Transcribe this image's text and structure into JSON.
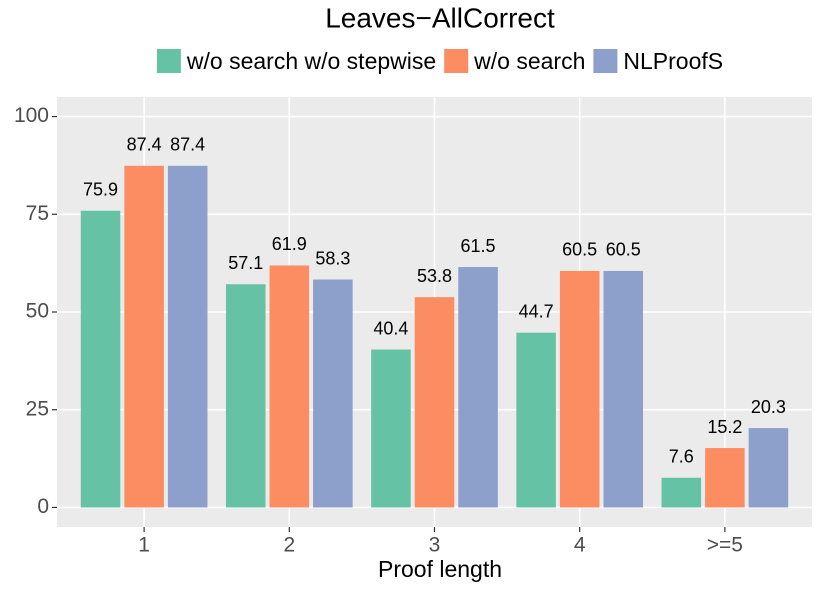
{
  "chart_data": {
    "type": "bar",
    "title": "Leaves−AllCorrect",
    "x_label": "Proof length",
    "categories": [
      "1",
      "2",
      "3",
      "4",
      ">=5"
    ],
    "series": [
      {
        "name": "w/o search w/o stepwise",
        "color": "#66c2a5",
        "values": [
          75.9,
          57.1,
          40.4,
          44.7,
          7.6
        ]
      },
      {
        "name": "w/o search",
        "color": "#fc8d62",
        "values": [
          87.4,
          61.9,
          53.8,
          60.5,
          15.2
        ]
      },
      {
        "name": "NLProofS",
        "color": "#8da0cb",
        "values": [
          87.4,
          58.3,
          61.5,
          60.5,
          20.3
        ]
      }
    ],
    "ylim": [
      -5,
      105
    ],
    "yticks": [
      0,
      25,
      50,
      75,
      100
    ],
    "grid": true,
    "legend": "top"
  }
}
